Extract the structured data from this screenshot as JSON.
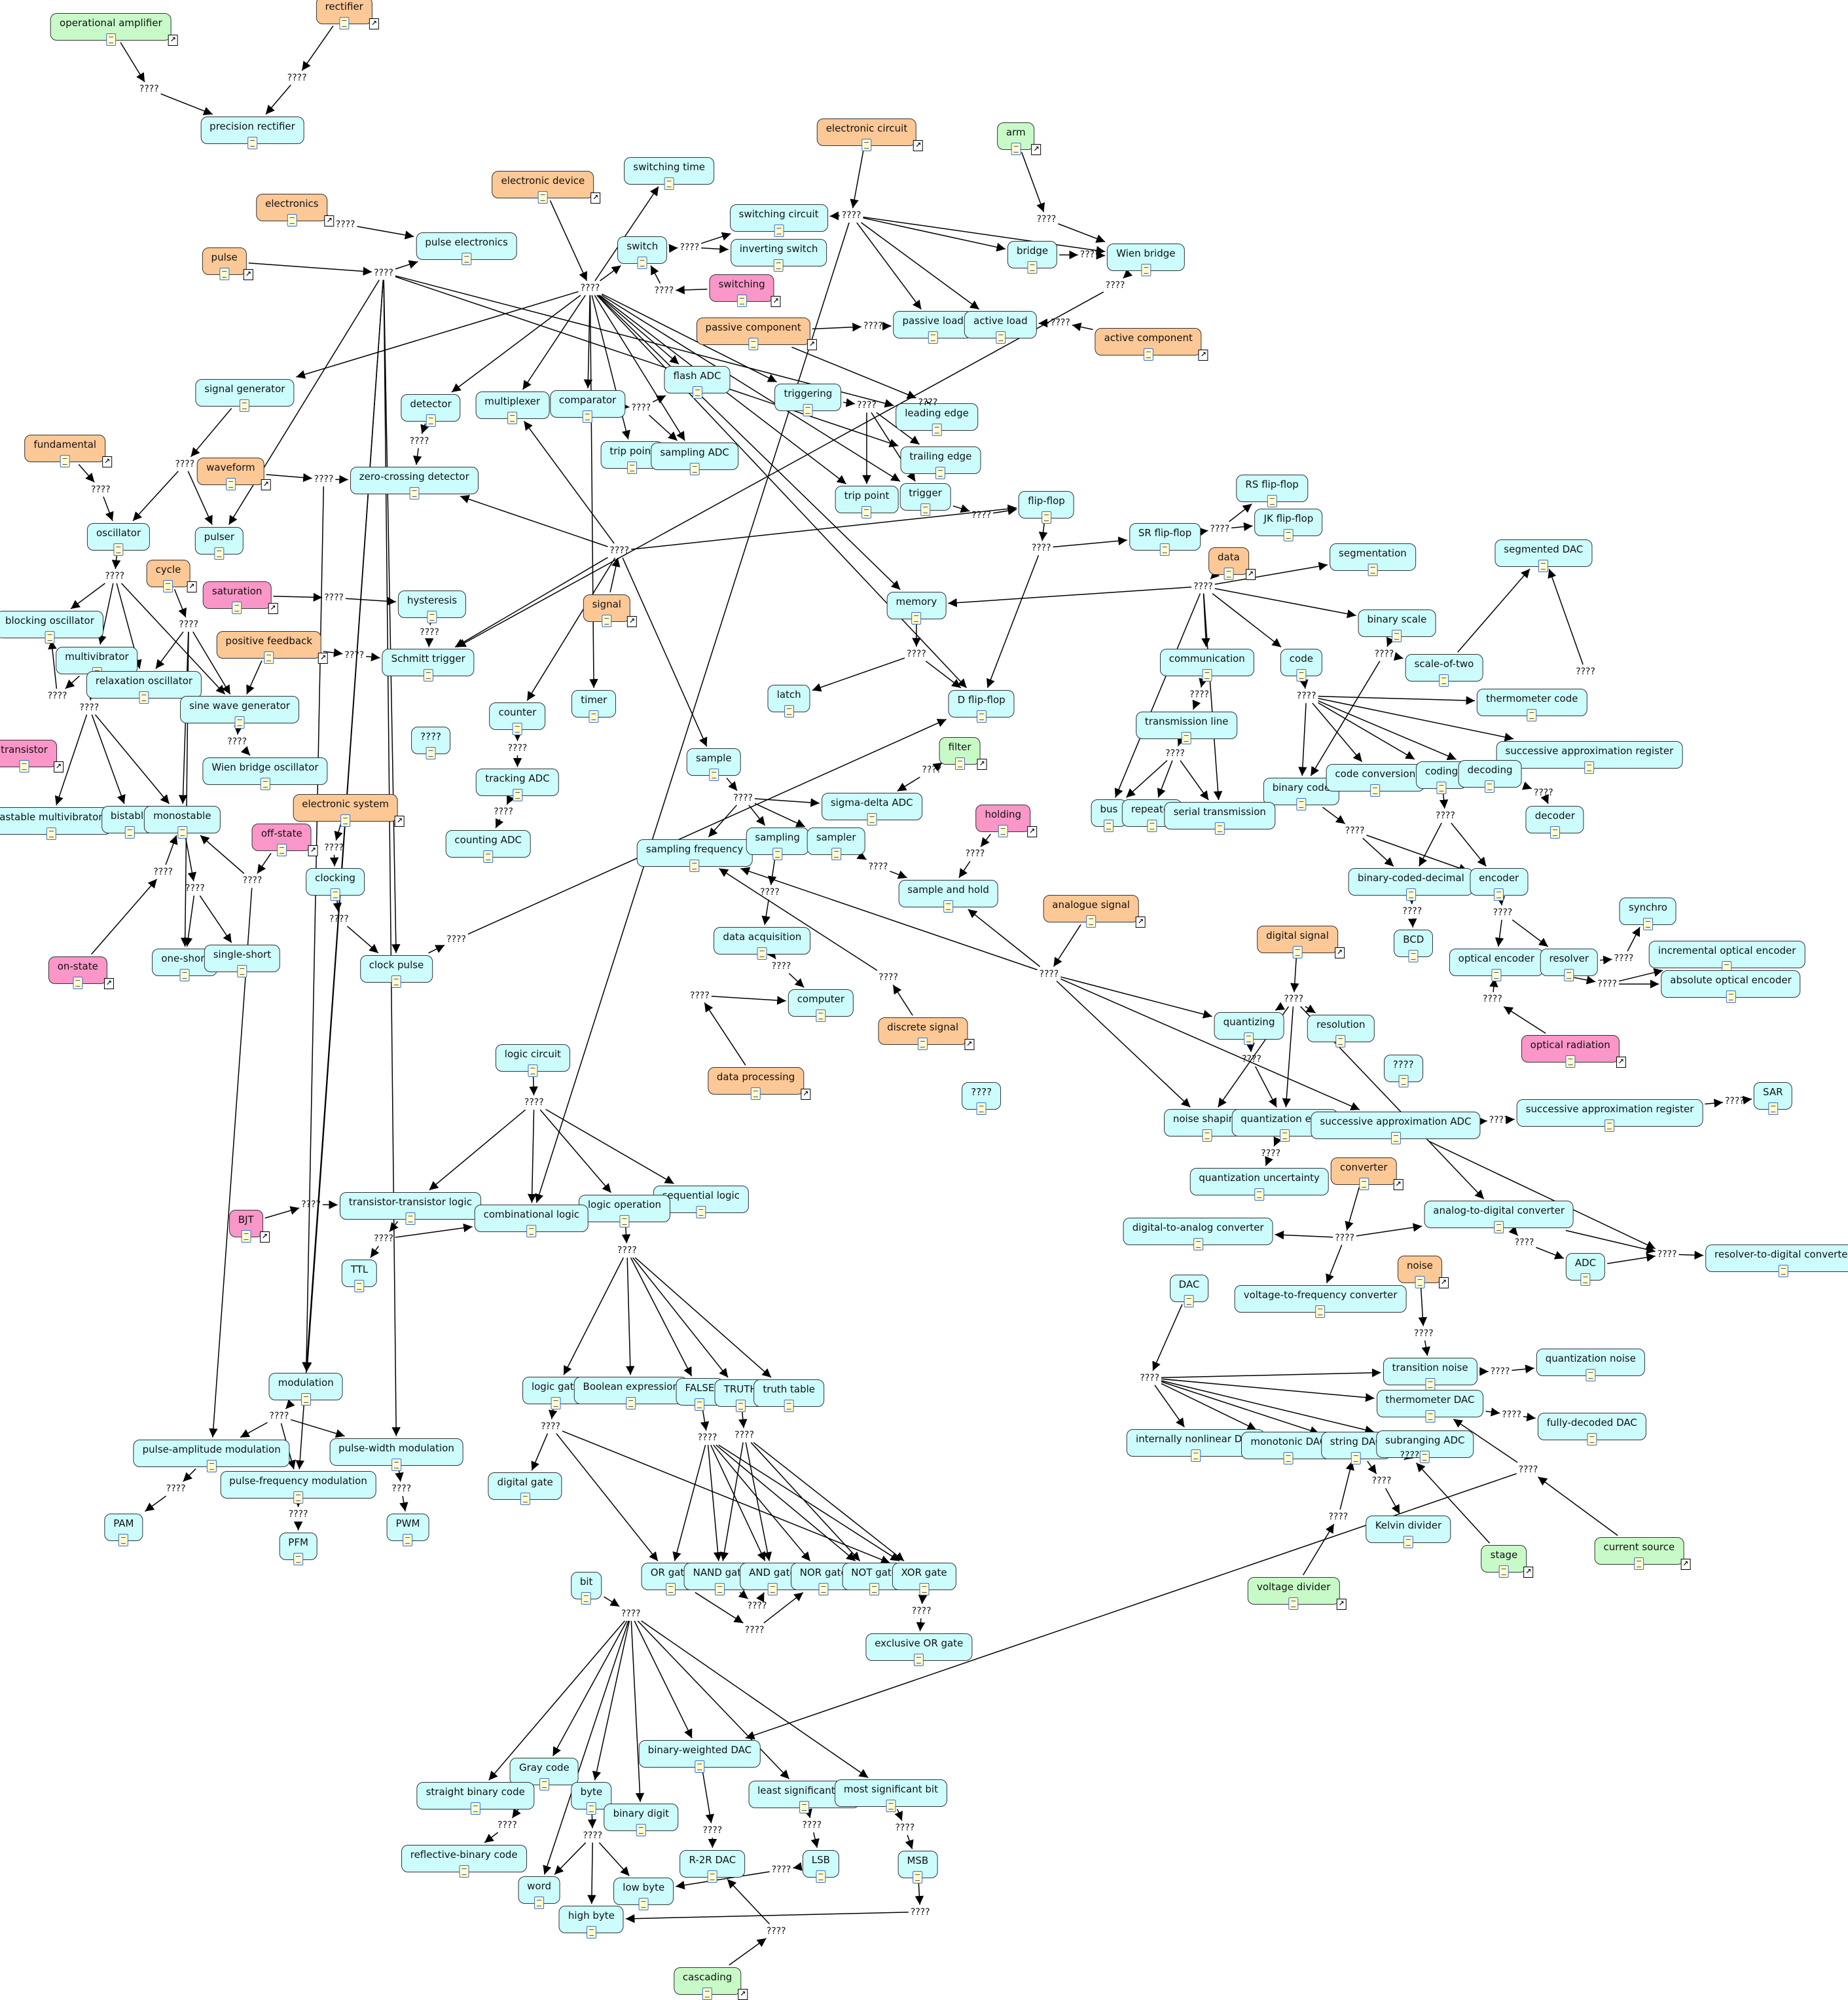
{
  "colors": {
    "concept": "#ccfcfc",
    "orange": "#fcc896",
    "green": "#c8fac8",
    "pink": "#fa96c8",
    "edge": "#000000"
  },
  "link_label": "????",
  "link_icon": "↗",
  "nodes": [
    {
      "label": "operational amplifier",
      "type": "green"
    },
    {
      "label": "rectifier",
      "type": "orange"
    },
    {
      "label": "precision rectifier",
      "type": "concept"
    },
    {
      "label": "electronic circuit",
      "type": "orange"
    },
    {
      "label": "arm",
      "type": "green"
    },
    {
      "label": "switching time",
      "type": "concept"
    },
    {
      "label": "electronic device",
      "type": "orange"
    },
    {
      "label": "electronics",
      "type": "orange"
    },
    {
      "label": "switching circuit",
      "type": "concept"
    },
    {
      "label": "pulse electronics",
      "type": "concept"
    },
    {
      "label": "pulse",
      "type": "orange"
    },
    {
      "label": "switch",
      "type": "concept"
    },
    {
      "label": "inverting switch",
      "type": "concept"
    },
    {
      "label": "bridge",
      "type": "concept"
    },
    {
      "label": "Wien bridge",
      "type": "concept"
    },
    {
      "label": "switching",
      "type": "pink"
    },
    {
      "label": "passive component",
      "type": "orange"
    },
    {
      "label": "passive load",
      "type": "concept"
    },
    {
      "label": "active load",
      "type": "concept"
    },
    {
      "label": "active component",
      "type": "orange"
    },
    {
      "label": "signal generator",
      "type": "concept"
    },
    {
      "label": "flash ADC",
      "type": "concept"
    },
    {
      "label": "detector",
      "type": "concept"
    },
    {
      "label": "multiplexer",
      "type": "concept"
    },
    {
      "label": "comparator",
      "type": "concept"
    },
    {
      "label": "triggering",
      "type": "concept"
    },
    {
      "label": "leading edge",
      "type": "concept"
    },
    {
      "label": "fundamental",
      "type": "orange"
    },
    {
      "label": "trip point",
      "type": "concept"
    },
    {
      "label": "sampling ADC",
      "type": "concept"
    },
    {
      "label": "trailing edge",
      "type": "concept"
    },
    {
      "label": "waveform",
      "type": "orange"
    },
    {
      "label": "zero-crossing detector",
      "type": "concept"
    },
    {
      "label": "trip point",
      "type": "concept"
    },
    {
      "label": "trigger",
      "type": "concept"
    },
    {
      "label": "RS flip-flop",
      "type": "concept"
    },
    {
      "label": "flip-flop",
      "type": "concept"
    },
    {
      "label": "oscillator",
      "type": "concept"
    },
    {
      "label": "pulser",
      "type": "concept"
    },
    {
      "label": "SR flip-flop",
      "type": "concept"
    },
    {
      "label": "JK flip-flop",
      "type": "concept"
    },
    {
      "label": "data",
      "type": "orange"
    },
    {
      "label": "segmentation",
      "type": "concept"
    },
    {
      "label": "segmented DAC",
      "type": "concept"
    },
    {
      "label": "cycle",
      "type": "orange"
    },
    {
      "label": "saturation",
      "type": "pink"
    },
    {
      "label": "hysteresis",
      "type": "concept"
    },
    {
      "label": "memory",
      "type": "concept"
    },
    {
      "label": "signal",
      "type": "orange"
    },
    {
      "label": "blocking oscillator",
      "type": "concept"
    },
    {
      "label": "binary scale",
      "type": "concept"
    },
    {
      "label": "positive feedback",
      "type": "orange"
    },
    {
      "label": "multivibrator",
      "type": "concept"
    },
    {
      "label": "Schmitt trigger",
      "type": "concept"
    },
    {
      "label": "communication",
      "type": "concept"
    },
    {
      "label": "code",
      "type": "concept"
    },
    {
      "label": "scale-of-two",
      "type": "concept"
    },
    {
      "label": "relaxation oscillator",
      "type": "concept"
    },
    {
      "label": "latch",
      "type": "concept"
    },
    {
      "label": "timer",
      "type": "concept"
    },
    {
      "label": "D flip-flop",
      "type": "concept"
    },
    {
      "label": "thermometer code",
      "type": "concept"
    },
    {
      "label": "sine wave generator",
      "type": "concept"
    },
    {
      "label": "counter",
      "type": "concept"
    },
    {
      "label": "transmission line",
      "type": "concept"
    },
    {
      "label": "????",
      "type": "concept"
    },
    {
      "label": "filter",
      "type": "green"
    },
    {
      "label": "transistor",
      "type": "pink"
    },
    {
      "label": "sample",
      "type": "concept"
    },
    {
      "label": "successive approximation register",
      "type": "concept"
    },
    {
      "label": "Wien bridge oscillator",
      "type": "concept"
    },
    {
      "label": "tracking ADC",
      "type": "concept"
    },
    {
      "label": "binary code",
      "type": "concept"
    },
    {
      "label": "code conversion",
      "type": "concept"
    },
    {
      "label": "coding",
      "type": "concept"
    },
    {
      "label": "decoding",
      "type": "concept"
    },
    {
      "label": "sigma-delta ADC",
      "type": "concept"
    },
    {
      "label": "bus",
      "type": "concept"
    },
    {
      "label": "repeater",
      "type": "concept"
    },
    {
      "label": "serial transmission",
      "type": "concept"
    },
    {
      "label": "astable multivibrator",
      "type": "concept"
    },
    {
      "label": "bistable",
      "type": "concept"
    },
    {
      "label": "monostable",
      "type": "concept"
    },
    {
      "label": "electronic system",
      "type": "orange"
    },
    {
      "label": "holding",
      "type": "pink"
    },
    {
      "label": "decoder",
      "type": "concept"
    },
    {
      "label": "off-state",
      "type": "pink"
    },
    {
      "label": "counting ADC",
      "type": "concept"
    },
    {
      "label": "sampling frequency",
      "type": "concept"
    },
    {
      "label": "sampling",
      "type": "concept"
    },
    {
      "label": "sampler",
      "type": "concept"
    },
    {
      "label": "clocking",
      "type": "concept"
    },
    {
      "label": "binary-coded-decimal",
      "type": "concept"
    },
    {
      "label": "encoder",
      "type": "concept"
    },
    {
      "label": "sample and hold",
      "type": "concept"
    },
    {
      "label": "analogue signal",
      "type": "orange"
    },
    {
      "label": "synchro",
      "type": "concept"
    },
    {
      "label": "data acquisition",
      "type": "concept"
    },
    {
      "label": "BCD",
      "type": "concept"
    },
    {
      "label": "digital signal",
      "type": "orange"
    },
    {
      "label": "incremental optical encoder",
      "type": "concept"
    },
    {
      "label": "one-short",
      "type": "concept"
    },
    {
      "label": "single-short",
      "type": "concept"
    },
    {
      "label": "clock pulse",
      "type": "concept"
    },
    {
      "label": "on-state",
      "type": "pink"
    },
    {
      "label": "optical encoder",
      "type": "concept"
    },
    {
      "label": "resolver",
      "type": "concept"
    },
    {
      "label": "absolute optical encoder",
      "type": "concept"
    },
    {
      "label": "computer",
      "type": "concept"
    },
    {
      "label": "quantizing",
      "type": "concept"
    },
    {
      "label": "resolution",
      "type": "concept"
    },
    {
      "label": "discrete signal",
      "type": "orange"
    },
    {
      "label": "optical radiation",
      "type": "pink"
    },
    {
      "label": "logic circuit",
      "type": "concept"
    },
    {
      "label": "????",
      "type": "concept"
    },
    {
      "label": "data processing",
      "type": "orange"
    },
    {
      "label": "????",
      "type": "concept"
    },
    {
      "label": "SAR",
      "type": "concept"
    },
    {
      "label": "successive approximation register",
      "type": "concept"
    },
    {
      "label": "noise shaping",
      "type": "concept"
    },
    {
      "label": "quantization error",
      "type": "concept"
    },
    {
      "label": "successive approximation ADC",
      "type": "concept"
    },
    {
      "label": "converter",
      "type": "orange"
    },
    {
      "label": "quantization uncertainty",
      "type": "concept"
    },
    {
      "label": "sequential logic",
      "type": "concept"
    },
    {
      "label": "transistor-transistor logic",
      "type": "concept"
    },
    {
      "label": "logic operation",
      "type": "concept"
    },
    {
      "label": "combinational logic",
      "type": "concept"
    },
    {
      "label": "BJT",
      "type": "pink"
    },
    {
      "label": "analog-to-digital converter",
      "type": "concept"
    },
    {
      "label": "digital-to-analog converter",
      "type": "concept"
    },
    {
      "label": "resolver-to-digital converter",
      "type": "concept"
    },
    {
      "label": "ADC",
      "type": "concept"
    },
    {
      "label": "noise",
      "type": "orange"
    },
    {
      "label": "TTL",
      "type": "concept"
    },
    {
      "label": "DAC",
      "type": "concept"
    },
    {
      "label": "voltage-to-frequency converter",
      "type": "concept"
    },
    {
      "label": "transition noise",
      "type": "concept"
    },
    {
      "label": "quantization noise",
      "type": "concept"
    },
    {
      "label": "modulation",
      "type": "concept"
    },
    {
      "label": "logic gate",
      "type": "concept"
    },
    {
      "label": "Boolean expression",
      "type": "concept"
    },
    {
      "label": "FALSE",
      "type": "concept"
    },
    {
      "label": "TRUTH",
      "type": "concept"
    },
    {
      "label": "truth table",
      "type": "concept"
    },
    {
      "label": "thermometer DAC",
      "type": "concept"
    },
    {
      "label": "fully-decoded DAC",
      "type": "concept"
    },
    {
      "label": "pulse-amplitude modulation",
      "type": "concept"
    },
    {
      "label": "pulse-width modulation",
      "type": "concept"
    },
    {
      "label": "internally nonlinear DAC",
      "type": "concept"
    },
    {
      "label": "monotonic DAC",
      "type": "concept"
    },
    {
      "label": "string DAC",
      "type": "concept"
    },
    {
      "label": "subranging ADC",
      "type": "concept"
    },
    {
      "label": "pulse-frequency modulation",
      "type": "concept"
    },
    {
      "label": "digital gate",
      "type": "concept"
    },
    {
      "label": "PAM",
      "type": "concept"
    },
    {
      "label": "PWM",
      "type": "concept"
    },
    {
      "label": "Kelvin divider",
      "type": "concept"
    },
    {
      "label": "PFM",
      "type": "concept"
    },
    {
      "label": "current source",
      "type": "green"
    },
    {
      "label": "stage",
      "type": "green"
    },
    {
      "label": "OR gate",
      "type": "concept"
    },
    {
      "label": "NAND gate",
      "type": "concept"
    },
    {
      "label": "AND gate",
      "type": "concept"
    },
    {
      "label": "NOR gate",
      "type": "concept"
    },
    {
      "label": "NOT gate",
      "type": "concept"
    },
    {
      "label": "XOR gate",
      "type": "concept"
    },
    {
      "label": "bit",
      "type": "concept"
    },
    {
      "label": "voltage divider",
      "type": "green"
    },
    {
      "label": "exclusive OR gate",
      "type": "concept"
    },
    {
      "label": "binary-weighted DAC",
      "type": "concept"
    },
    {
      "label": "Gray code",
      "type": "concept"
    },
    {
      "label": "straight binary code",
      "type": "concept"
    },
    {
      "label": "byte",
      "type": "concept"
    },
    {
      "label": "least significant bit",
      "type": "concept"
    },
    {
      "label": "most significant bit",
      "type": "concept"
    },
    {
      "label": "binary digit",
      "type": "concept"
    },
    {
      "label": "reflective-binary code",
      "type": "concept"
    },
    {
      "label": "R-2R DAC",
      "type": "concept"
    },
    {
      "label": "LSB",
      "type": "concept"
    },
    {
      "label": "MSB",
      "type": "concept"
    },
    {
      "label": "word",
      "type": "concept"
    },
    {
      "label": "low byte",
      "type": "concept"
    },
    {
      "label": "high byte",
      "type": "concept"
    },
    {
      "label": "cascading",
      "type": "green"
    }
  ]
}
